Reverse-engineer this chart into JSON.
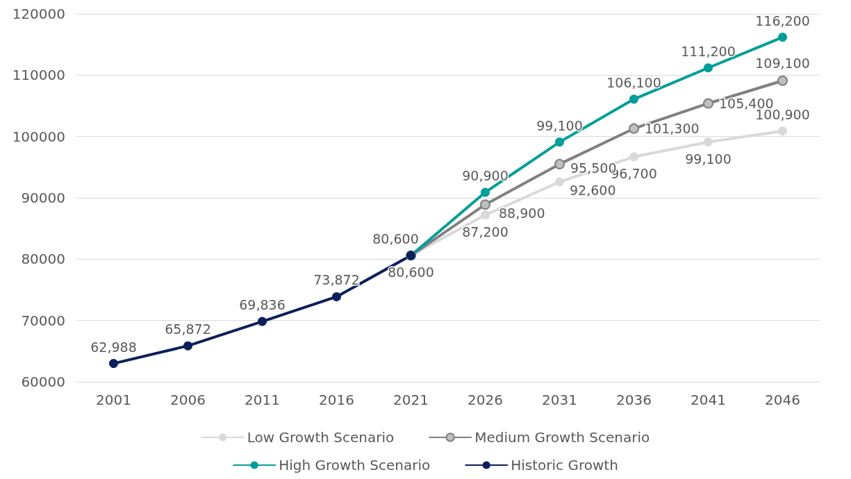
{
  "chart_data": {
    "type": "line",
    "categories": [
      "2001",
      "2006",
      "2011",
      "2016",
      "2021",
      "2026",
      "2031",
      "2036",
      "2041",
      "2046"
    ],
    "ylim": [
      60000,
      120000
    ],
    "yticks": [
      60000,
      70000,
      80000,
      90000,
      100000,
      110000,
      120000
    ],
    "grid": "y",
    "legend": "bottom",
    "marker": "circle",
    "line_style": "solid",
    "series": [
      {
        "name": "Low Growth Scenario",
        "color": "#d9d9d9",
        "values": [
          null,
          null,
          null,
          null,
          80600,
          87200,
          92600,
          96700,
          99100,
          100900
        ],
        "value_labels": [
          null,
          null,
          null,
          null,
          "80,600",
          "87,200",
          "92,600",
          "96,700",
          "99,100",
          "100,900"
        ]
      },
      {
        "name": "Medium Growth Scenario",
        "color": "#808080",
        "values": [
          null,
          null,
          null,
          null,
          80600,
          88900,
          95500,
          101300,
          105400,
          109100
        ],
        "value_labels": [
          null,
          null,
          null,
          null,
          null,
          "88,900",
          "95,500",
          "101,300",
          "105,400",
          "109,100"
        ]
      },
      {
        "name": "High Growth Scenario",
        "color": "#009e9a",
        "values": [
          null,
          null,
          null,
          null,
          80600,
          90900,
          99100,
          106100,
          111200,
          116200
        ],
        "value_labels": [
          null,
          null,
          null,
          null,
          null,
          "90,900",
          "99,100",
          "106,100",
          "111,200",
          "116,200"
        ]
      },
      {
        "name": "Historic Growth",
        "color": "#0b1f5c",
        "values": [
          62988,
          65872,
          69836,
          73872,
          80600,
          null,
          null,
          null,
          null,
          null
        ],
        "value_labels": [
          "62,988",
          "65,872",
          "69,836",
          "73,872",
          "80,600",
          null,
          null,
          null,
          null,
          null
        ]
      }
    ]
  }
}
